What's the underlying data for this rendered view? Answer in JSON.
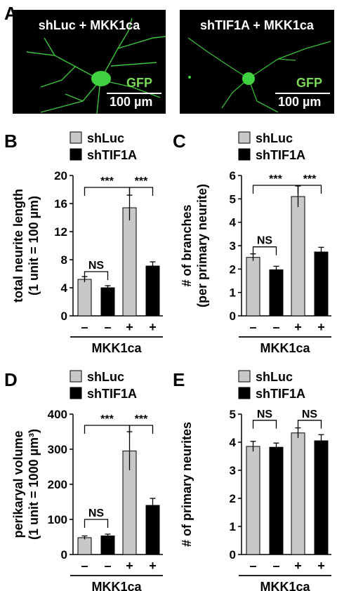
{
  "panel_a": {
    "letter": "A",
    "images": [
      {
        "title": "shLuc + MKK1ca",
        "marker": "GFP",
        "scale": "100 µm"
      },
      {
        "title": "shTIF1A + MKK1ca",
        "marker": "GFP",
        "scale": "100 µm"
      }
    ]
  },
  "colors": {
    "shLuc": "#c8c8c8",
    "shTIF1A": "#000000",
    "gfp": "#7ad957"
  },
  "chart_data": [
    {
      "panel": "B",
      "type": "bar",
      "ylabel_line1": "total neurite length",
      "ylabel_line2": "(1 unit = 100 µm)",
      "ylim": [
        0,
        20
      ],
      "yticks": [
        0,
        4,
        8,
        12,
        16,
        20
      ],
      "categories": [
        "–",
        "–",
        "+",
        "+"
      ],
      "group_label": "MKK1ca",
      "legend": [
        "shLuc",
        "shTIF1A"
      ],
      "series_order": [
        "shLuc",
        "shTIF1A",
        "shLuc",
        "shTIF1A"
      ],
      "values": [
        5.2,
        4.0,
        15.4,
        7.1
      ],
      "errors": [
        0.4,
        0.3,
        1.8,
        0.6
      ],
      "brackets": [
        {
          "from": 0,
          "to": 1,
          "label": "NS",
          "y": 6.3
        },
        {
          "from": 0,
          "to": 2,
          "label": "***",
          "y": 18.3
        },
        {
          "from": 2,
          "to": 3,
          "label": "***",
          "y": 18.3
        }
      ]
    },
    {
      "panel": "C",
      "type": "bar",
      "ylabel_line1": "# of branches",
      "ylabel_line2": "(per primary neurite)",
      "ylim": [
        0,
        6
      ],
      "yticks": [
        0,
        1,
        2,
        3,
        4,
        5,
        6
      ],
      "categories": [
        "–",
        "–",
        "+",
        "+"
      ],
      "group_label": "MKK1ca",
      "legend": [
        "shLuc",
        "shTIF1A"
      ],
      "series_order": [
        "shLuc",
        "shTIF1A",
        "shLuc",
        "shTIF1A"
      ],
      "values": [
        2.5,
        1.97,
        5.1,
        2.73
      ],
      "errors": [
        0.15,
        0.15,
        0.45,
        0.2
      ],
      "brackets": [
        {
          "from": 0,
          "to": 1,
          "label": "NS",
          "y": 2.95
        },
        {
          "from": 0,
          "to": 2,
          "label": "***",
          "y": 5.58
        },
        {
          "from": 2,
          "to": 3,
          "label": "***",
          "y": 5.58
        }
      ]
    },
    {
      "panel": "D",
      "type": "bar",
      "ylabel_line1": "perikaryal volume",
      "ylabel_line2": "(1 unit = 1000 µm³)",
      "ylim": [
        0,
        400
      ],
      "yticks": [
        0,
        100,
        200,
        300,
        400
      ],
      "categories": [
        "–",
        "–",
        "+",
        "+"
      ],
      "group_label": "MKK1ca",
      "legend": [
        "shLuc",
        "shTIF1A"
      ],
      "series_order": [
        "shLuc",
        "shTIF1A",
        "shLuc",
        "shTIF1A"
      ],
      "values": [
        48,
        53,
        295,
        140
      ],
      "errors": [
        5,
        5,
        55,
        20
      ],
      "brackets": [
        {
          "from": 0,
          "to": 1,
          "label": "NS",
          "y": 100
        },
        {
          "from": 0,
          "to": 2,
          "label": "***",
          "y": 368
        },
        {
          "from": 2,
          "to": 3,
          "label": "***",
          "y": 368
        }
      ]
    },
    {
      "panel": "E",
      "type": "bar",
      "ylabel_line1": "# of primary neurites",
      "ylabel_line2": "",
      "ylim": [
        0,
        5
      ],
      "yticks": [
        0,
        1,
        2,
        3,
        4,
        5
      ],
      "categories": [
        "–",
        "–",
        "+",
        "+"
      ],
      "group_label": "MKK1ca",
      "legend": [
        "shLuc",
        "shTIF1A"
      ],
      "series_order": [
        "shLuc",
        "shTIF1A",
        "shLuc",
        "shTIF1A"
      ],
      "values": [
        3.85,
        3.82,
        4.33,
        4.05
      ],
      "errors": [
        0.18,
        0.15,
        0.18,
        0.22
      ],
      "brackets": [
        {
          "from": 0,
          "to": 1,
          "label": "NS",
          "y": 4.78
        },
        {
          "from": 2,
          "to": 3,
          "label": "NS",
          "y": 4.78
        }
      ]
    }
  ]
}
